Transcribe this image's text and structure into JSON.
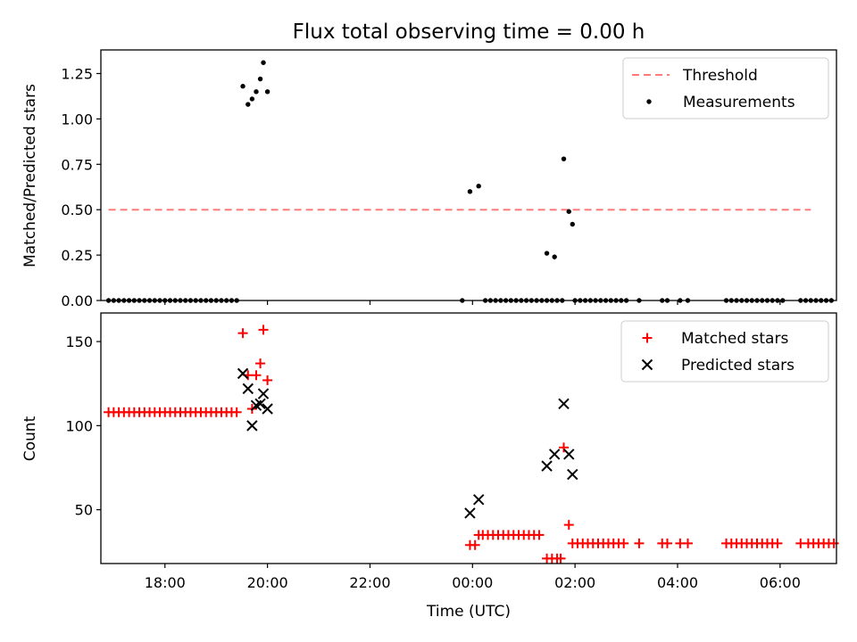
{
  "title": "Flux total observing time = 0.00 h",
  "chart_data": [
    {
      "type": "scatter",
      "ylabel": "Matched/Predicted stars",
      "xlabel": "",
      "x_range_hours": [
        16.75,
        31.1
      ],
      "ylim": [
        0,
        1.38
      ],
      "yticks": [
        0.0,
        0.25,
        0.5,
        0.75,
        1.0,
        1.25
      ],
      "ytick_labels": [
        "0.00",
        "0.25",
        "0.50",
        "0.75",
        "1.00",
        "1.25"
      ],
      "legend": {
        "placement": "top-right",
        "entries": [
          "Threshold",
          "Measurements"
        ]
      },
      "threshold": {
        "name": "Threshold",
        "value": 0.5,
        "x_start": 16.9,
        "x_end": 30.6,
        "color": "#ff7a7a",
        "style": "dashed"
      },
      "series": [
        {
          "name": "Measurements",
          "color": "#000000",
          "marker": "dot",
          "points": [
            {
              "x": 16.9,
              "y": 0
            },
            {
              "x": 17.0,
              "y": 0
            },
            {
              "x": 17.1,
              "y": 0
            },
            {
              "x": 17.2,
              "y": 0
            },
            {
              "x": 17.3,
              "y": 0
            },
            {
              "x": 17.4,
              "y": 0
            },
            {
              "x": 17.5,
              "y": 0
            },
            {
              "x": 17.6,
              "y": 0
            },
            {
              "x": 17.7,
              "y": 0
            },
            {
              "x": 17.8,
              "y": 0
            },
            {
              "x": 17.9,
              "y": 0
            },
            {
              "x": 18.0,
              "y": 0
            },
            {
              "x": 18.1,
              "y": 0
            },
            {
              "x": 18.2,
              "y": 0
            },
            {
              "x": 18.3,
              "y": 0
            },
            {
              "x": 18.4,
              "y": 0
            },
            {
              "x": 18.5,
              "y": 0
            },
            {
              "x": 18.6,
              "y": 0
            },
            {
              "x": 18.7,
              "y": 0
            },
            {
              "x": 18.8,
              "y": 0
            },
            {
              "x": 18.9,
              "y": 0
            },
            {
              "x": 19.0,
              "y": 0
            },
            {
              "x": 19.1,
              "y": 0
            },
            {
              "x": 19.2,
              "y": 0
            },
            {
              "x": 19.3,
              "y": 0
            },
            {
              "x": 19.4,
              "y": 0
            },
            {
              "x": 19.52,
              "y": 1.18
            },
            {
              "x": 19.62,
              "y": 1.08
            },
            {
              "x": 19.7,
              "y": 1.11
            },
            {
              "x": 19.78,
              "y": 1.15
            },
            {
              "x": 19.86,
              "y": 1.22
            },
            {
              "x": 19.92,
              "y": 1.31
            },
            {
              "x": 20.0,
              "y": 1.15
            },
            {
              "x": 23.8,
              "y": 0
            },
            {
              "x": 23.95,
              "y": 0.6
            },
            {
              "x": 24.12,
              "y": 0.63
            },
            {
              "x": 24.25,
              "y": 0
            },
            {
              "x": 24.35,
              "y": 0
            },
            {
              "x": 24.45,
              "y": 0
            },
            {
              "x": 24.55,
              "y": 0
            },
            {
              "x": 24.65,
              "y": 0
            },
            {
              "x": 24.75,
              "y": 0
            },
            {
              "x": 24.85,
              "y": 0
            },
            {
              "x": 24.95,
              "y": 0
            },
            {
              "x": 25.05,
              "y": 0
            },
            {
              "x": 25.15,
              "y": 0
            },
            {
              "x": 25.25,
              "y": 0
            },
            {
              "x": 25.35,
              "y": 0
            },
            {
              "x": 25.45,
              "y": 0
            },
            {
              "x": 25.55,
              "y": 0
            },
            {
              "x": 25.65,
              "y": 0
            },
            {
              "x": 25.75,
              "y": 0
            },
            {
              "x": 25.45,
              "y": 0.26
            },
            {
              "x": 25.6,
              "y": 0.24
            },
            {
              "x": 25.78,
              "y": 0.78
            },
            {
              "x": 25.88,
              "y": 0.49
            },
            {
              "x": 25.95,
              "y": 0.42
            },
            {
              "x": 26.0,
              "y": 0
            },
            {
              "x": 26.1,
              "y": 0
            },
            {
              "x": 26.2,
              "y": 0
            },
            {
              "x": 26.3,
              "y": 0
            },
            {
              "x": 26.4,
              "y": 0
            },
            {
              "x": 26.5,
              "y": 0
            },
            {
              "x": 26.6,
              "y": 0
            },
            {
              "x": 26.7,
              "y": 0
            },
            {
              "x": 26.8,
              "y": 0
            },
            {
              "x": 26.9,
              "y": 0
            },
            {
              "x": 27.0,
              "y": 0
            },
            {
              "x": 27.25,
              "y": 0
            },
            {
              "x": 27.7,
              "y": 0
            },
            {
              "x": 27.8,
              "y": 0
            },
            {
              "x": 28.05,
              "y": 0
            },
            {
              "x": 28.2,
              "y": 0
            },
            {
              "x": 28.95,
              "y": 0
            },
            {
              "x": 29.05,
              "y": 0
            },
            {
              "x": 29.15,
              "y": 0
            },
            {
              "x": 29.25,
              "y": 0
            },
            {
              "x": 29.35,
              "y": 0
            },
            {
              "x": 29.45,
              "y": 0
            },
            {
              "x": 29.55,
              "y": 0
            },
            {
              "x": 29.65,
              "y": 0
            },
            {
              "x": 29.75,
              "y": 0
            },
            {
              "x": 29.85,
              "y": 0
            },
            {
              "x": 29.95,
              "y": 0
            },
            {
              "x": 30.05,
              "y": 0
            },
            {
              "x": 30.4,
              "y": 0
            },
            {
              "x": 30.5,
              "y": 0
            },
            {
              "x": 30.6,
              "y": 0
            },
            {
              "x": 30.7,
              "y": 0
            },
            {
              "x": 30.8,
              "y": 0
            },
            {
              "x": 30.9,
              "y": 0
            },
            {
              "x": 31.0,
              "y": 0
            }
          ]
        }
      ]
    },
    {
      "type": "scatter",
      "ylabel": "Count",
      "xlabel": "Time (UTC)",
      "x_range_hours": [
        16.75,
        31.1
      ],
      "ylim": [
        18,
        167
      ],
      "yticks": [
        50,
        100,
        150
      ],
      "ytick_labels": [
        "50",
        "100",
        "150"
      ],
      "xticks": [
        18,
        20,
        22,
        24,
        26,
        28,
        30
      ],
      "xtick_labels": [
        "18:00",
        "20:00",
        "22:00",
        "00:00",
        "02:00",
        "04:00",
        "06:00"
      ],
      "legend": {
        "placement": "top-right",
        "entries": [
          "Matched stars",
          "Predicted stars"
        ]
      },
      "series": [
        {
          "name": "Matched stars",
          "color": "#ff0000",
          "marker": "plus",
          "points": [
            {
              "x": 16.9,
              "y": 108
            },
            {
              "x": 17.0,
              "y": 108
            },
            {
              "x": 17.1,
              "y": 108
            },
            {
              "x": 17.2,
              "y": 108
            },
            {
              "x": 17.3,
              "y": 108
            },
            {
              "x": 17.4,
              "y": 108
            },
            {
              "x": 17.5,
              "y": 108
            },
            {
              "x": 17.6,
              "y": 108
            },
            {
              "x": 17.7,
              "y": 108
            },
            {
              "x": 17.8,
              "y": 108
            },
            {
              "x": 17.9,
              "y": 108
            },
            {
              "x": 18.0,
              "y": 108
            },
            {
              "x": 18.1,
              "y": 108
            },
            {
              "x": 18.2,
              "y": 108
            },
            {
              "x": 18.3,
              "y": 108
            },
            {
              "x": 18.4,
              "y": 108
            },
            {
              "x": 18.5,
              "y": 108
            },
            {
              "x": 18.6,
              "y": 108
            },
            {
              "x": 18.7,
              "y": 108
            },
            {
              "x": 18.8,
              "y": 108
            },
            {
              "x": 18.9,
              "y": 108
            },
            {
              "x": 19.0,
              "y": 108
            },
            {
              "x": 19.1,
              "y": 108
            },
            {
              "x": 19.2,
              "y": 108
            },
            {
              "x": 19.3,
              "y": 108
            },
            {
              "x": 19.4,
              "y": 108
            },
            {
              "x": 19.52,
              "y": 155
            },
            {
              "x": 19.62,
              "y": 130
            },
            {
              "x": 19.7,
              "y": 110
            },
            {
              "x": 19.78,
              "y": 130
            },
            {
              "x": 19.86,
              "y": 137
            },
            {
              "x": 19.92,
              "y": 157
            },
            {
              "x": 20.0,
              "y": 127
            },
            {
              "x": 23.95,
              "y": 29
            },
            {
              "x": 24.05,
              "y": 29
            },
            {
              "x": 24.12,
              "y": 35
            },
            {
              "x": 24.2,
              "y": 35
            },
            {
              "x": 24.3,
              "y": 35
            },
            {
              "x": 24.4,
              "y": 35
            },
            {
              "x": 24.5,
              "y": 35
            },
            {
              "x": 24.6,
              "y": 35
            },
            {
              "x": 24.7,
              "y": 35
            },
            {
              "x": 24.8,
              "y": 35
            },
            {
              "x": 24.9,
              "y": 35
            },
            {
              "x": 25.0,
              "y": 35
            },
            {
              "x": 25.1,
              "y": 35
            },
            {
              "x": 25.2,
              "y": 35
            },
            {
              "x": 25.3,
              "y": 35
            },
            {
              "x": 25.45,
              "y": 21
            },
            {
              "x": 25.55,
              "y": 21
            },
            {
              "x": 25.65,
              "y": 21
            },
            {
              "x": 25.72,
              "y": 21
            },
            {
              "x": 25.78,
              "y": 87
            },
            {
              "x": 25.88,
              "y": 41
            },
            {
              "x": 25.95,
              "y": 30
            },
            {
              "x": 26.05,
              "y": 30
            },
            {
              "x": 26.15,
              "y": 30
            },
            {
              "x": 26.25,
              "y": 30
            },
            {
              "x": 26.35,
              "y": 30
            },
            {
              "x": 26.45,
              "y": 30
            },
            {
              "x": 26.55,
              "y": 30
            },
            {
              "x": 26.65,
              "y": 30
            },
            {
              "x": 26.75,
              "y": 30
            },
            {
              "x": 26.85,
              "y": 30
            },
            {
              "x": 26.95,
              "y": 30
            },
            {
              "x": 27.25,
              "y": 30
            },
            {
              "x": 27.7,
              "y": 30
            },
            {
              "x": 27.8,
              "y": 30
            },
            {
              "x": 28.05,
              "y": 30
            },
            {
              "x": 28.2,
              "y": 30
            },
            {
              "x": 28.95,
              "y": 30
            },
            {
              "x": 29.05,
              "y": 30
            },
            {
              "x": 29.15,
              "y": 30
            },
            {
              "x": 29.25,
              "y": 30
            },
            {
              "x": 29.35,
              "y": 30
            },
            {
              "x": 29.45,
              "y": 30
            },
            {
              "x": 29.55,
              "y": 30
            },
            {
              "x": 29.65,
              "y": 30
            },
            {
              "x": 29.75,
              "y": 30
            },
            {
              "x": 29.85,
              "y": 30
            },
            {
              "x": 29.95,
              "y": 30
            },
            {
              "x": 30.4,
              "y": 30
            },
            {
              "x": 30.55,
              "y": 30
            },
            {
              "x": 30.65,
              "y": 30
            },
            {
              "x": 30.75,
              "y": 30
            },
            {
              "x": 30.85,
              "y": 30
            },
            {
              "x": 30.95,
              "y": 30
            },
            {
              "x": 31.05,
              "y": 30
            }
          ]
        },
        {
          "name": "Predicted stars",
          "color": "#000000",
          "marker": "x",
          "points": [
            {
              "x": 19.52,
              "y": 131
            },
            {
              "x": 19.62,
              "y": 122
            },
            {
              "x": 19.7,
              "y": 100
            },
            {
              "x": 19.78,
              "y": 112
            },
            {
              "x": 19.86,
              "y": 113
            },
            {
              "x": 19.92,
              "y": 119
            },
            {
              "x": 20.0,
              "y": 110
            },
            {
              "x": 23.95,
              "y": 48
            },
            {
              "x": 24.12,
              "y": 56
            },
            {
              "x": 25.45,
              "y": 76
            },
            {
              "x": 25.6,
              "y": 83
            },
            {
              "x": 25.78,
              "y": 113
            },
            {
              "x": 25.88,
              "y": 83
            },
            {
              "x": 25.95,
              "y": 71
            }
          ]
        }
      ]
    }
  ]
}
